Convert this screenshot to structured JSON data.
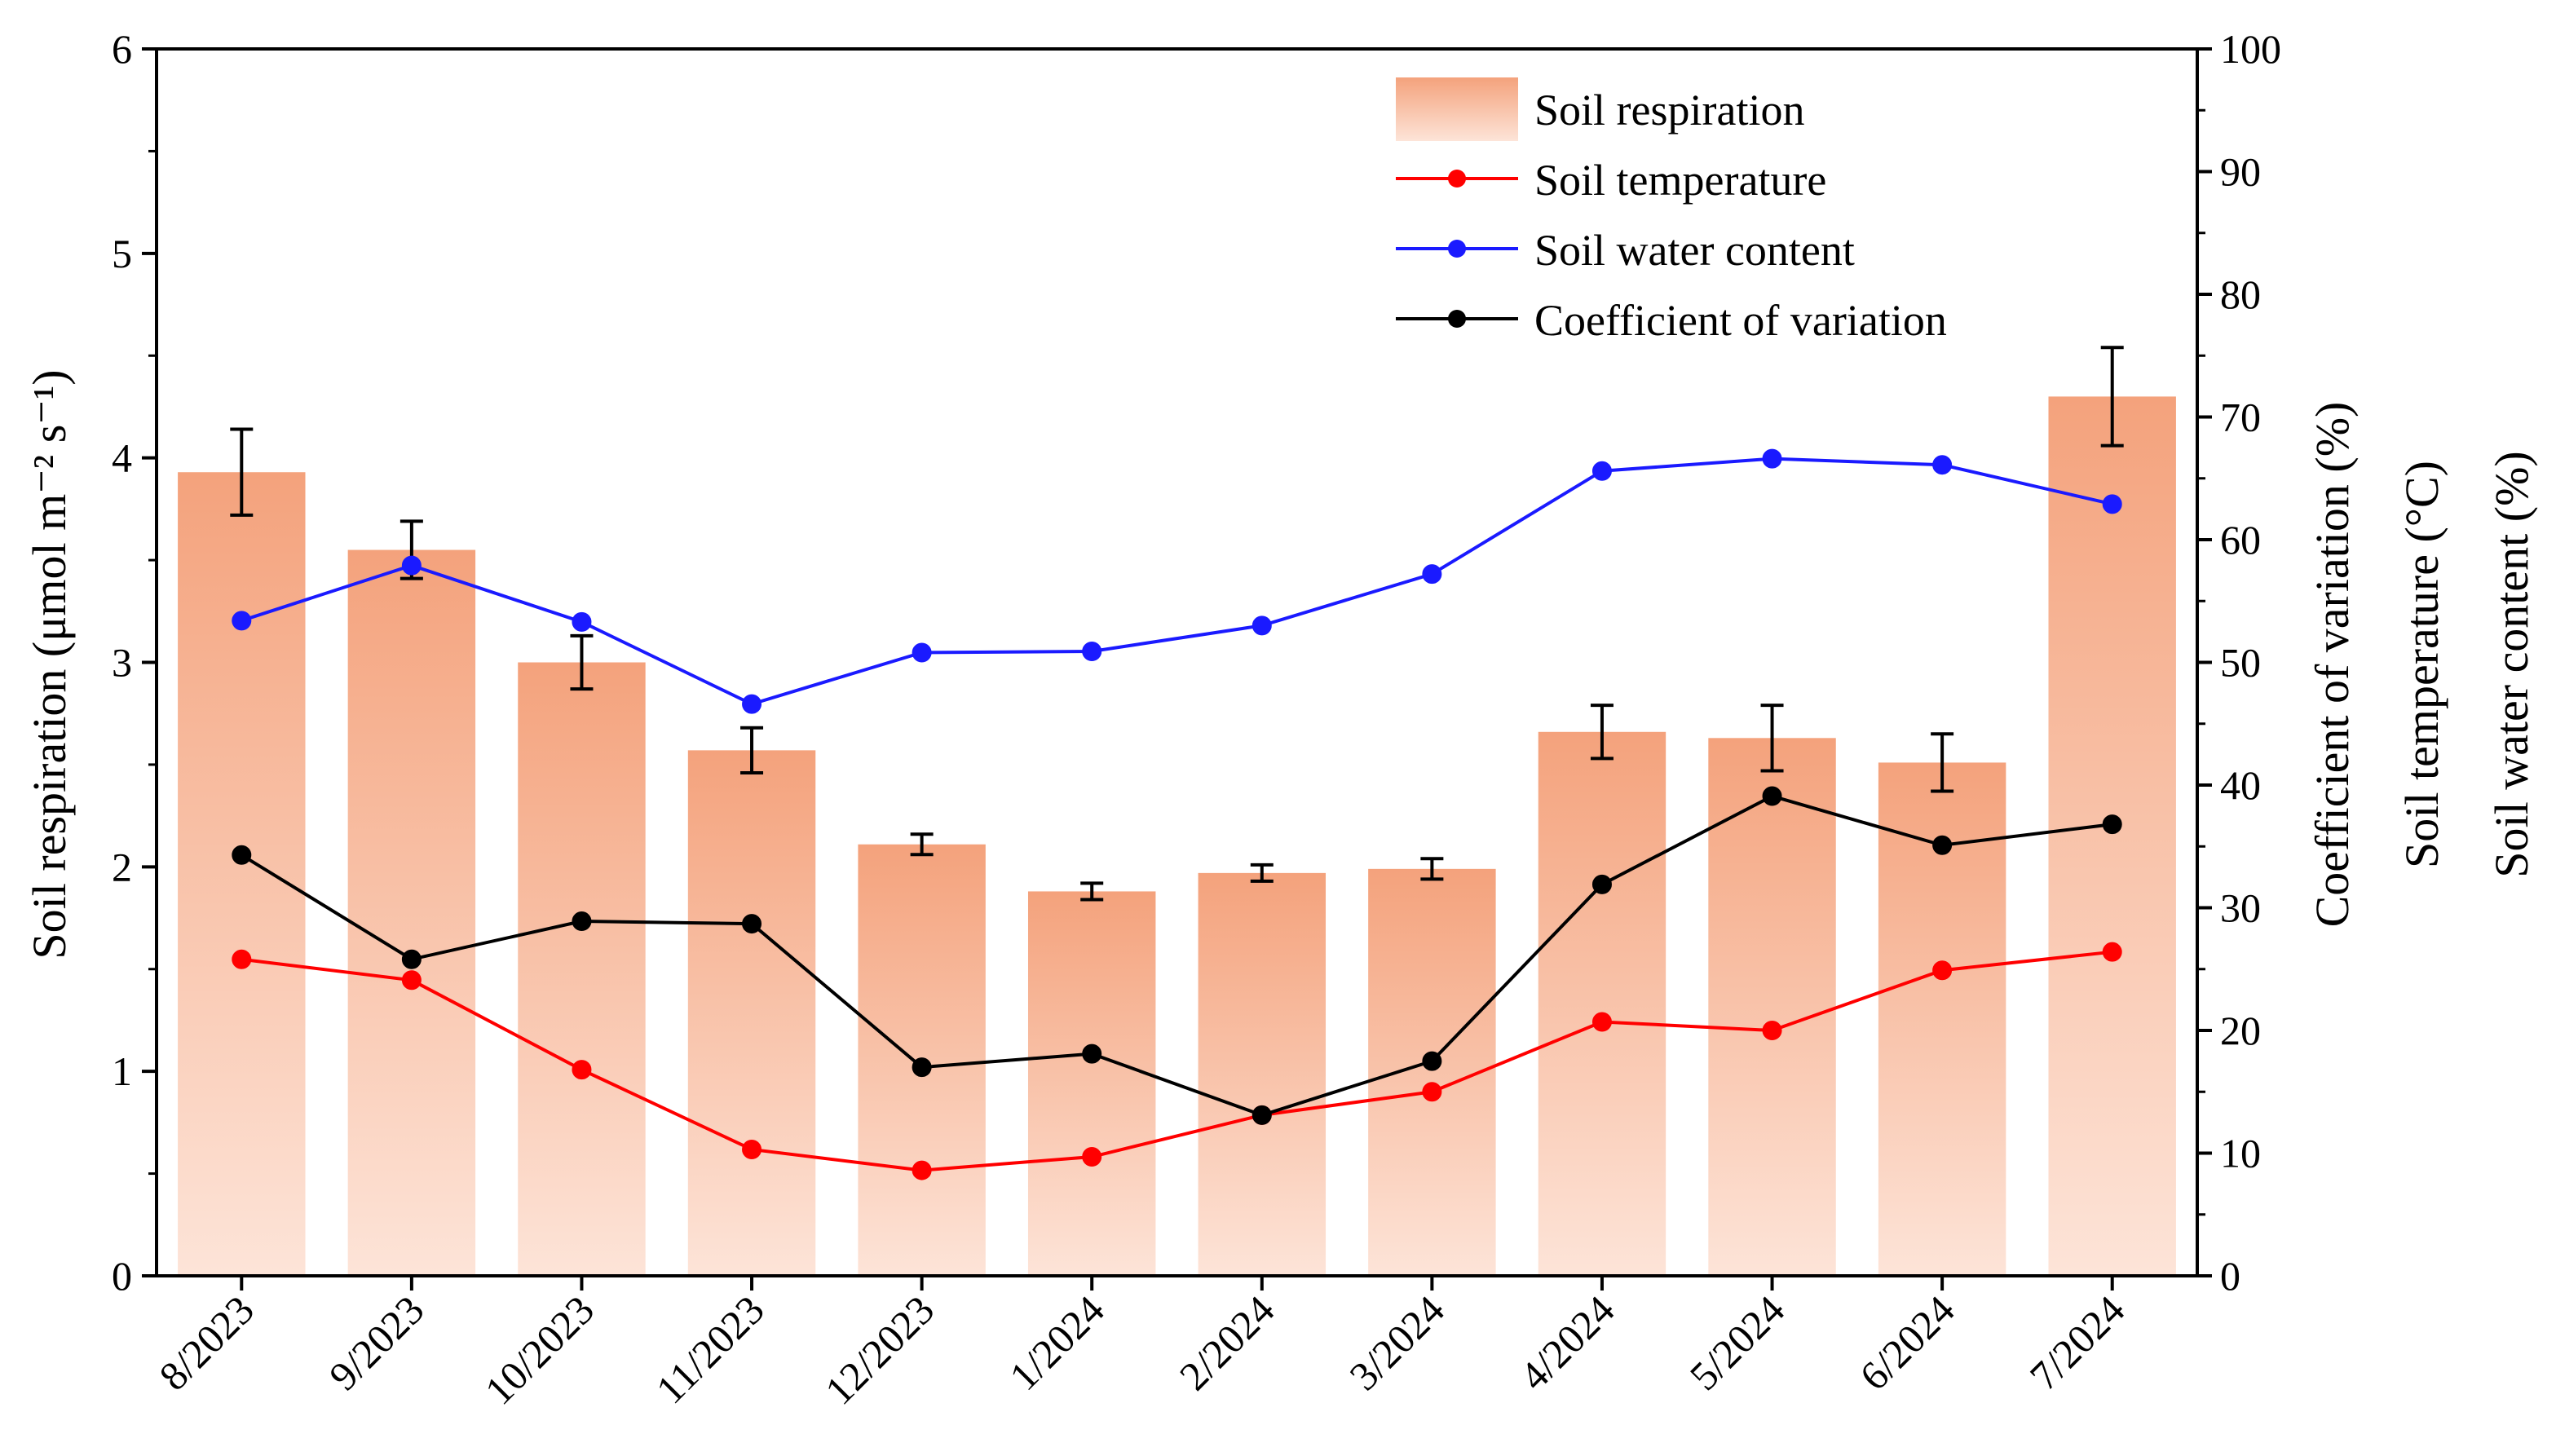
{
  "chart_data": {
    "type": "bar",
    "categories": [
      "8/2023",
      "9/2023",
      "10/2023",
      "11/2023",
      "12/2023",
      "1/2024",
      "2/2024",
      "3/2024",
      "4/2024",
      "5/2024",
      "6/2024",
      "7/2024"
    ],
    "series": [
      {
        "name": "Soil respiration",
        "kind": "bar",
        "axis": "left",
        "color": "#f4a27c",
        "values": [
          3.93,
          3.55,
          3.0,
          2.57,
          2.11,
          1.88,
          1.97,
          1.99,
          2.66,
          2.63,
          2.51,
          4.3
        ],
        "error": [
          0.21,
          0.14,
          0.13,
          0.11,
          0.05,
          0.04,
          0.04,
          0.05,
          0.13,
          0.16,
          0.14,
          0.24
        ]
      },
      {
        "name": "Soil temperature",
        "kind": "line",
        "axis": "right",
        "color": "#ff0000",
        "values": [
          25.8,
          24.1,
          16.8,
          10.3,
          8.6,
          9.7,
          13.1,
          15.0,
          20.7,
          20.0,
          24.9,
          26.4
        ]
      },
      {
        "name": "Soil water content",
        "kind": "line",
        "axis": "right",
        "color": "#1a1aff",
        "values": [
          53.4,
          57.9,
          53.3,
          46.6,
          50.8,
          50.9,
          53.0,
          57.2,
          65.6,
          66.6,
          66.1,
          62.9
        ]
      },
      {
        "name": "Coefficient of variation",
        "kind": "line",
        "axis": "right",
        "color": "#000000",
        "values": [
          34.3,
          25.8,
          28.9,
          28.7,
          17.0,
          18.1,
          13.1,
          17.5,
          31.9,
          39.1,
          35.1,
          36.8
        ]
      }
    ],
    "ylabel": "Soil respiration (μmol m⁻² s⁻¹)",
    "ylim": [
      0,
      6
    ],
    "yticks": [
      "0",
      "1",
      "2",
      "3",
      "4",
      "5",
      "6"
    ],
    "y2labels": [
      "Coefficient of variation (%)",
      "Soil temperature (°C)",
      "Soil water content (%)"
    ],
    "y2lim": [
      0,
      100
    ],
    "y2ticks": [
      "0",
      "10",
      "20",
      "30",
      "40",
      "50",
      "60",
      "70",
      "80",
      "90",
      "100"
    ],
    "grid": false,
    "legend_position": "top-right"
  }
}
